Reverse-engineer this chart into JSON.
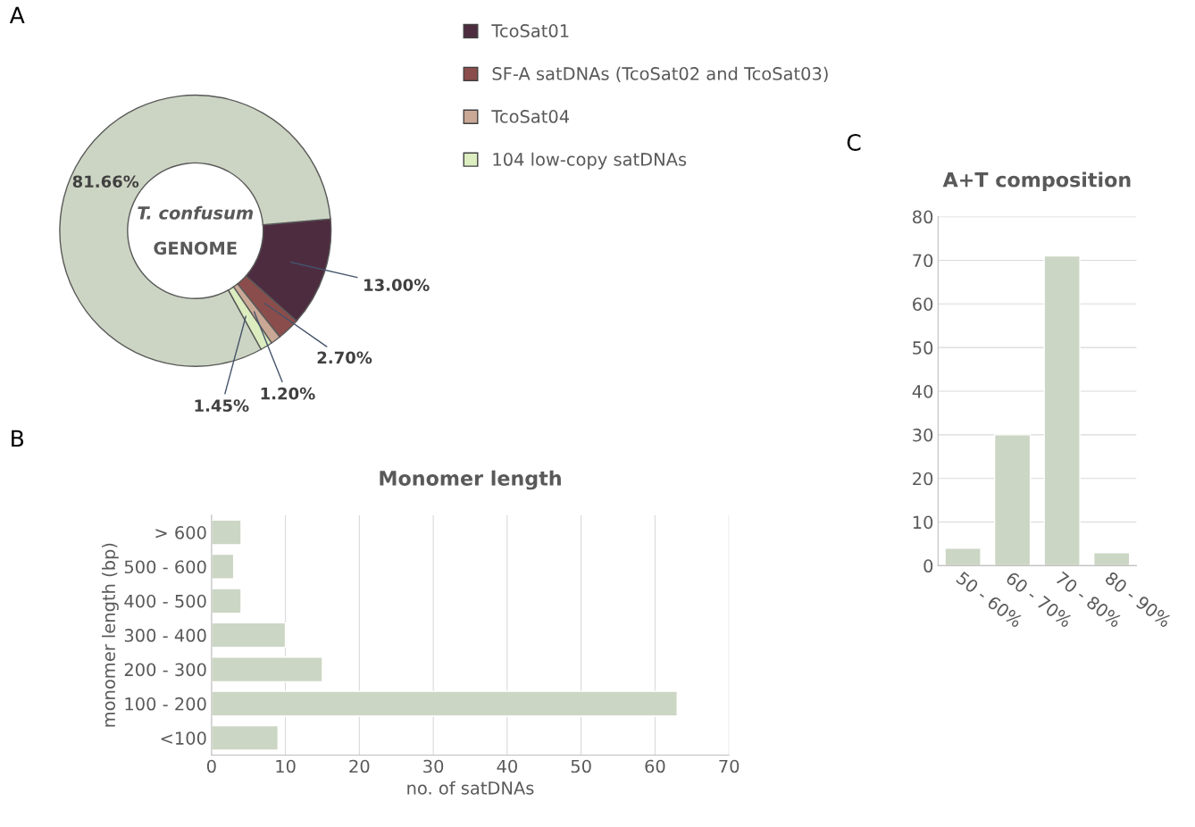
{
  "chart_data": [
    {
      "type": "donut",
      "categories": [
        "TcoSat01",
        "SF-A satDNAs (TcoSat02 and TcoSat03)",
        "TcoSat04",
        "104 low-copy satDNAs",
        null
      ],
      "values": [
        13.0,
        2.7,
        1.2,
        1.45,
        81.66
      ],
      "colors": [
        "#4e2c40",
        "#8b4d4b",
        "#c9a896",
        "#dcedc0",
        "#ccd5c3"
      ],
      "value_labels": [
        "13.00%",
        "2.70%",
        "1.20%",
        "1.45%",
        "81.66%"
      ],
      "legend": "right",
      "annotations": [
        "A",
        "T. confusum",
        "GENOME"
      ]
    },
    {
      "type": "bar",
      "orientation": "horizontal",
      "title": "Monomer length",
      "xlabel": "no. of satDNAs",
      "ylabel": "monomer length (bp)",
      "categories": [
        "> 600",
        "500 - 600",
        "400 - 500",
        "300 - 400",
        "200 - 300",
        "100 - 200",
        "<100"
      ],
      "values": [
        4,
        3,
        4,
        10,
        15,
        63,
        9
      ],
      "color": "#ccd6c4",
      "xlim": [
        0,
        70
      ],
      "xticks": [
        0,
        10,
        20,
        30,
        40,
        50,
        60,
        70
      ],
      "grid": "x",
      "annotations": [
        "B"
      ]
    },
    {
      "type": "bar",
      "title": "A+T composition",
      "categories": [
        "50 - 60%",
        "60 - 70%",
        "70 - 80%",
        "80 - 90%"
      ],
      "values": [
        4,
        30,
        71,
        3
      ],
      "color": "#ccd6c4",
      "ylim": [
        0,
        80
      ],
      "yticks": [
        0,
        10,
        20,
        30,
        40,
        50,
        60,
        70,
        80
      ],
      "grid": "y",
      "annotations": [
        "C"
      ]
    }
  ]
}
